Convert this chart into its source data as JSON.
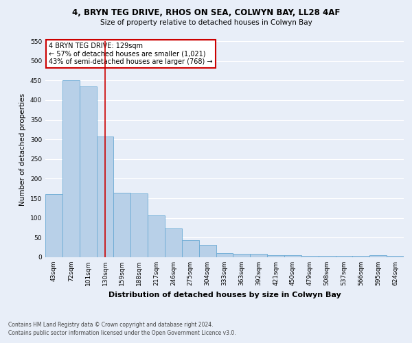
{
  "title1": "4, BRYN TEG DRIVE, RHOS ON SEA, COLWYN BAY, LL28 4AF",
  "title2": "Size of property relative to detached houses in Colwyn Bay",
  "xlabel": "Distribution of detached houses by size in Colwyn Bay",
  "ylabel": "Number of detached properties",
  "categories": [
    "43sqm",
    "72sqm",
    "101sqm",
    "130sqm",
    "159sqm",
    "188sqm",
    "217sqm",
    "246sqm",
    "275sqm",
    "304sqm",
    "333sqm",
    "363sqm",
    "392sqm",
    "421sqm",
    "450sqm",
    "479sqm",
    "508sqm",
    "537sqm",
    "566sqm",
    "595sqm",
    "624sqm"
  ],
  "values": [
    160,
    450,
    435,
    307,
    165,
    163,
    107,
    74,
    44,
    32,
    10,
    8,
    8,
    5,
    5,
    4,
    4,
    4,
    4,
    5,
    4
  ],
  "bar_color": "#b8d0e8",
  "bar_edge_color": "#6aaad4",
  "bg_color": "#e8eef8",
  "grid_color": "#ffffff",
  "vline_x": 3,
  "vline_color": "#cc0000",
  "annotation_text": "4 BRYN TEG DRIVE: 129sqm\n← 57% of detached houses are smaller (1,021)\n43% of semi-detached houses are larger (768) →",
  "annotation_box_color": "#ffffff",
  "annotation_box_edge": "#cc0000",
  "footnote1": "Contains HM Land Registry data © Crown copyright and database right 2024.",
  "footnote2": "Contains public sector information licensed under the Open Government Licence v3.0.",
  "ylim": [
    0,
    550
  ],
  "yticks": [
    0,
    50,
    100,
    150,
    200,
    250,
    300,
    350,
    400,
    450,
    500,
    550
  ],
  "title1_fontsize": 8.5,
  "title2_fontsize": 7.5,
  "xlabel_fontsize": 8,
  "ylabel_fontsize": 7.5,
  "tick_fontsize": 6.5,
  "annot_fontsize": 7,
  "footnote_fontsize": 5.5
}
